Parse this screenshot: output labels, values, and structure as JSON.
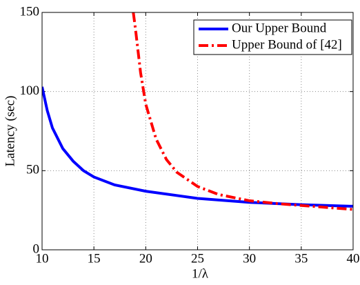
{
  "chart_data": {
    "type": "line",
    "xlabel": "1/λ",
    "ylabel": "Latency (sec)",
    "xlim": [
      10,
      40
    ],
    "xticks": [
      10,
      15,
      20,
      25,
      30,
      35,
      40
    ],
    "ylim": [
      0,
      150
    ],
    "yticks": [
      0,
      50,
      100,
      150
    ],
    "grid": true,
    "legend": "upper right",
    "series": [
      {
        "name": "Our Upper Bound",
        "color": "#0000ff",
        "style": "solid",
        "x": [
          10,
          10.5,
          11,
          12,
          13,
          14,
          15,
          17,
          20,
          25,
          30,
          35,
          40
        ],
        "values": [
          103,
          88,
          77,
          64,
          56,
          50,
          46,
          41,
          37,
          32.5,
          30,
          28.5,
          27.5
        ]
      },
      {
        "name": "Upper Bound of [42]",
        "color": "#ff0000",
        "style": "dashdot",
        "x": [
          18.8,
          19,
          19.5,
          20,
          21,
          22,
          23,
          25,
          27,
          30,
          33,
          35,
          38,
          40
        ],
        "values": [
          150,
          140,
          112,
          92,
          70,
          57,
          49,
          40,
          35,
          31,
          29,
          28,
          26.5,
          25.5
        ]
      }
    ]
  }
}
